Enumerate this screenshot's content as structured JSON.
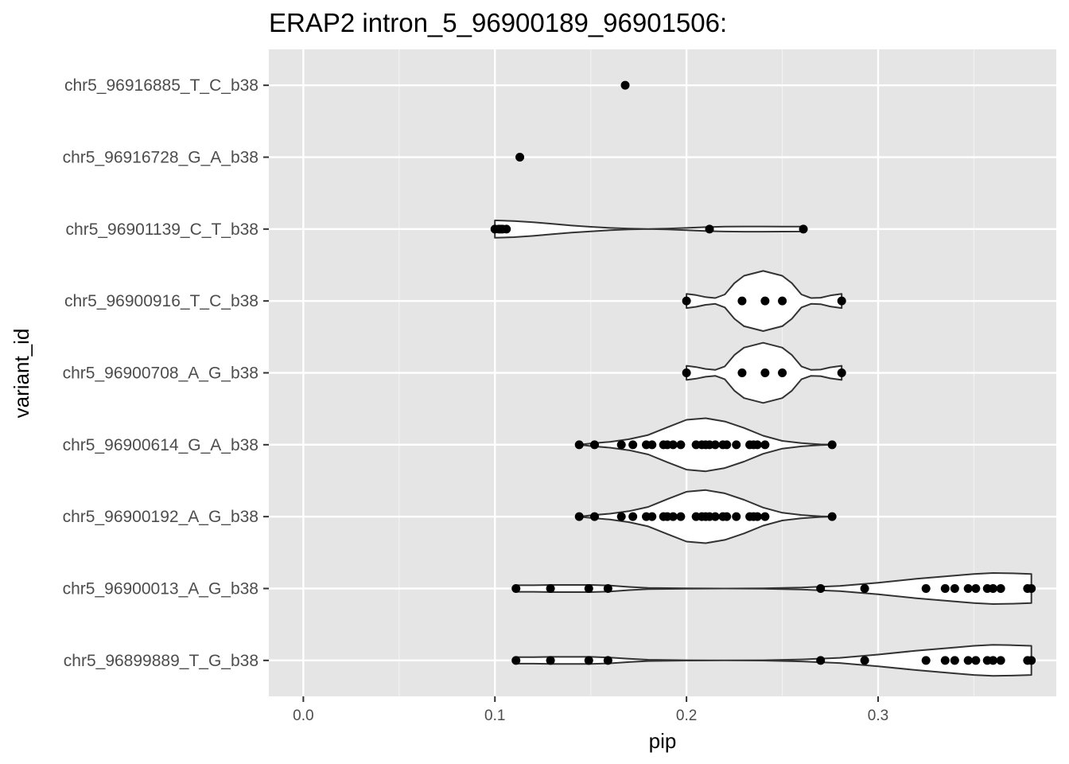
{
  "chart_data": {
    "type": "violin",
    "title": "ERAP2 intron_5_96900189_96901506:",
    "xlabel": "pip",
    "ylabel": "variant_id",
    "xlim": [
      -0.018,
      0.393
    ],
    "xticks": [
      "0.0",
      "0.1",
      "0.2",
      "0.3"
    ],
    "xtick_values": [
      0.0,
      0.1,
      0.2,
      0.3
    ],
    "grid": true,
    "background": "#e5e5e5",
    "violin_fill": "#ffffff",
    "violin_stroke": "#333333",
    "point_color": "#000000",
    "categories": [
      "chr5_96916885_T_C_b38",
      "chr5_96916728_G_A_b38",
      "chr5_96901139_C_T_b38",
      "chr5_96900916_T_C_b38",
      "chr5_96900708_A_G_b38",
      "chr5_96900614_G_A_b38",
      "chr5_96900192_A_G_b38",
      "chr5_96900013_A_G_b38",
      "chr5_96899889_T_G_b38"
    ],
    "series": [
      {
        "variant": "chr5_96916885_T_C_b38",
        "points": [
          0.168
        ],
        "density": []
      },
      {
        "variant": "chr5_96916728_G_A_b38",
        "points": [
          0.113
        ],
        "density": []
      },
      {
        "variant": "chr5_96901139_C_T_b38",
        "points": [
          0.1,
          0.102,
          0.103,
          0.104,
          0.106,
          0.212,
          0.261
        ],
        "density": [
          [
            0.1,
            0.27
          ],
          [
            0.11,
            0.25
          ],
          [
            0.12,
            0.21
          ],
          [
            0.13,
            0.16
          ],
          [
            0.14,
            0.11
          ],
          [
            0.15,
            0.07
          ],
          [
            0.16,
            0.035
          ],
          [
            0.17,
            0.012
          ],
          [
            0.18,
            0.0
          ],
          [
            0.19,
            0.012
          ],
          [
            0.2,
            0.035
          ],
          [
            0.21,
            0.06
          ],
          [
            0.22,
            0.075
          ],
          [
            0.23,
            0.08
          ],
          [
            0.24,
            0.08
          ],
          [
            0.25,
            0.078
          ],
          [
            0.261,
            0.075
          ]
        ]
      },
      {
        "variant": "chr5_96900916_T_C_b38",
        "points": [
          0.2,
          0.229,
          0.241,
          0.25,
          0.281
        ],
        "density": [
          [
            0.2,
            0.22
          ],
          [
            0.205,
            0.18
          ],
          [
            0.21,
            0.12
          ],
          [
            0.215,
            0.09
          ],
          [
            0.22,
            0.2
          ],
          [
            0.225,
            0.55
          ],
          [
            0.23,
            0.78
          ],
          [
            0.24,
            0.93
          ],
          [
            0.25,
            0.78
          ],
          [
            0.255,
            0.55
          ],
          [
            0.26,
            0.2
          ],
          [
            0.265,
            0.09
          ],
          [
            0.27,
            0.1
          ],
          [
            0.275,
            0.17
          ],
          [
            0.281,
            0.22
          ]
        ]
      },
      {
        "variant": "chr5_96900708_A_G_b38",
        "points": [
          0.2,
          0.229,
          0.241,
          0.25,
          0.281
        ],
        "density": [
          [
            0.2,
            0.22
          ],
          [
            0.205,
            0.18
          ],
          [
            0.21,
            0.12
          ],
          [
            0.215,
            0.09
          ],
          [
            0.22,
            0.2
          ],
          [
            0.225,
            0.55
          ],
          [
            0.23,
            0.78
          ],
          [
            0.24,
            0.93
          ],
          [
            0.25,
            0.78
          ],
          [
            0.255,
            0.55
          ],
          [
            0.26,
            0.2
          ],
          [
            0.265,
            0.09
          ],
          [
            0.27,
            0.1
          ],
          [
            0.275,
            0.17
          ],
          [
            0.281,
            0.22
          ]
        ]
      },
      {
        "variant": "chr5_96900614_G_A_b38",
        "points": [
          0.144,
          0.152,
          0.166,
          0.172,
          0.179,
          0.182,
          0.188,
          0.19,
          0.193,
          0.197,
          0.205,
          0.208,
          0.21,
          0.212,
          0.215,
          0.219,
          0.221,
          0.226,
          0.233,
          0.235,
          0.237,
          0.241,
          0.276
        ],
        "density": [
          [
            0.144,
            0.0
          ],
          [
            0.15,
            0.04
          ],
          [
            0.16,
            0.09
          ],
          [
            0.17,
            0.17
          ],
          [
            0.18,
            0.3
          ],
          [
            0.19,
            0.54
          ],
          [
            0.2,
            0.77
          ],
          [
            0.21,
            0.82
          ],
          [
            0.22,
            0.72
          ],
          [
            0.23,
            0.52
          ],
          [
            0.24,
            0.28
          ],
          [
            0.25,
            0.12
          ],
          [
            0.26,
            0.05
          ],
          [
            0.27,
            0.01
          ],
          [
            0.276,
            0.0
          ]
        ]
      },
      {
        "variant": "chr5_96900192_A_G_b38",
        "points": [
          0.144,
          0.152,
          0.166,
          0.172,
          0.179,
          0.182,
          0.188,
          0.19,
          0.193,
          0.197,
          0.205,
          0.208,
          0.21,
          0.212,
          0.215,
          0.219,
          0.221,
          0.226,
          0.233,
          0.235,
          0.237,
          0.241,
          0.276
        ],
        "density": [
          [
            0.144,
            0.0
          ],
          [
            0.15,
            0.04
          ],
          [
            0.16,
            0.09
          ],
          [
            0.17,
            0.17
          ],
          [
            0.18,
            0.3
          ],
          [
            0.19,
            0.54
          ],
          [
            0.2,
            0.77
          ],
          [
            0.21,
            0.82
          ],
          [
            0.22,
            0.72
          ],
          [
            0.23,
            0.52
          ],
          [
            0.24,
            0.28
          ],
          [
            0.25,
            0.12
          ],
          [
            0.26,
            0.05
          ],
          [
            0.27,
            0.01
          ],
          [
            0.276,
            0.0
          ]
        ]
      },
      {
        "variant": "chr5_96900013_A_G_b38",
        "points": [
          0.111,
          0.129,
          0.149,
          0.159,
          0.27,
          0.293,
          0.325,
          0.335,
          0.34,
          0.347,
          0.351,
          0.357,
          0.36,
          0.364,
          0.378,
          0.38
        ],
        "density": [
          [
            0.111,
            0.1
          ],
          [
            0.12,
            0.1
          ],
          [
            0.13,
            0.11
          ],
          [
            0.14,
            0.11
          ],
          [
            0.15,
            0.11
          ],
          [
            0.16,
            0.09
          ],
          [
            0.17,
            0.05
          ],
          [
            0.18,
            0.02
          ],
          [
            0.2,
            0.005
          ],
          [
            0.22,
            0.0
          ],
          [
            0.24,
            0.005
          ],
          [
            0.26,
            0.03
          ],
          [
            0.28,
            0.08
          ],
          [
            0.3,
            0.18
          ],
          [
            0.32,
            0.3
          ],
          [
            0.34,
            0.4
          ],
          [
            0.35,
            0.45
          ],
          [
            0.36,
            0.48
          ],
          [
            0.37,
            0.47
          ],
          [
            0.38,
            0.45
          ]
        ]
      },
      {
        "variant": "chr5_96899889_T_G_b38",
        "points": [
          0.111,
          0.129,
          0.149,
          0.159,
          0.27,
          0.293,
          0.325,
          0.335,
          0.34,
          0.347,
          0.351,
          0.357,
          0.36,
          0.364,
          0.378,
          0.38
        ],
        "density": [
          [
            0.111,
            0.1
          ],
          [
            0.12,
            0.1
          ],
          [
            0.13,
            0.11
          ],
          [
            0.14,
            0.11
          ],
          [
            0.15,
            0.11
          ],
          [
            0.16,
            0.09
          ],
          [
            0.17,
            0.05
          ],
          [
            0.18,
            0.02
          ],
          [
            0.2,
            0.005
          ],
          [
            0.22,
            0.0
          ],
          [
            0.24,
            0.005
          ],
          [
            0.26,
            0.03
          ],
          [
            0.28,
            0.08
          ],
          [
            0.3,
            0.18
          ],
          [
            0.32,
            0.3
          ],
          [
            0.34,
            0.4
          ],
          [
            0.35,
            0.45
          ],
          [
            0.36,
            0.48
          ],
          [
            0.37,
            0.47
          ],
          [
            0.38,
            0.45
          ]
        ]
      }
    ]
  }
}
